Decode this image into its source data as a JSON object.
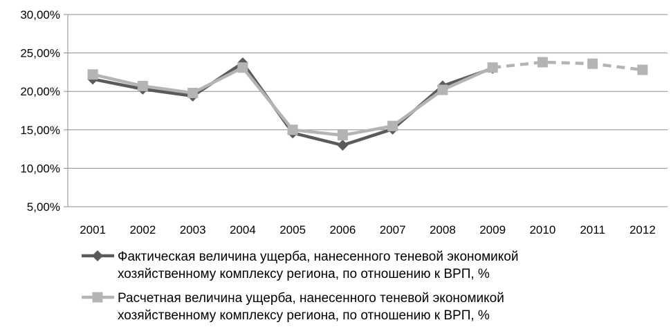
{
  "chart_data": {
    "type": "line",
    "x": [
      "2001",
      "2002",
      "2003",
      "2004",
      "2005",
      "2006",
      "2007",
      "2008",
      "2009",
      "2010",
      "2011",
      "2012"
    ],
    "ylim": [
      0.05,
      0.3
    ],
    "y_ticks": [
      "30,00%",
      "25,00%",
      "20,00%",
      "15,00%",
      "10,00%",
      "5,00%"
    ],
    "y_tick_values": [
      0.3,
      0.25,
      0.2,
      0.15,
      0.1,
      0.05
    ],
    "grid": true,
    "legend_position": "bottom",
    "series": [
      {
        "name_lines": [
          "Фактическая величина ущерба, нанесенного теневой экономикой",
          "хозяйственному комплексу региона, по отношению к ВРП, %"
        ],
        "color": "#5a5a5a",
        "marker": "diamond",
        "values": [
          0.216,
          0.203,
          0.194,
          0.237,
          0.146,
          0.13,
          0.151,
          0.207,
          0.23,
          null,
          null,
          null
        ]
      },
      {
        "name_lines": [
          "Расчетная величина ущерба, нанесенного теневой экономикой",
          "хозяйственному комплексу региона, по отношению к ВРП, %"
        ],
        "color": "#b4b4b4",
        "marker": "square",
        "values": [
          0.222,
          0.207,
          0.198,
          0.231,
          0.15,
          0.143,
          0.155,
          0.202,
          0.231,
          0.238,
          0.236,
          0.228
        ],
        "forecast_from_index": 8
      }
    ]
  }
}
